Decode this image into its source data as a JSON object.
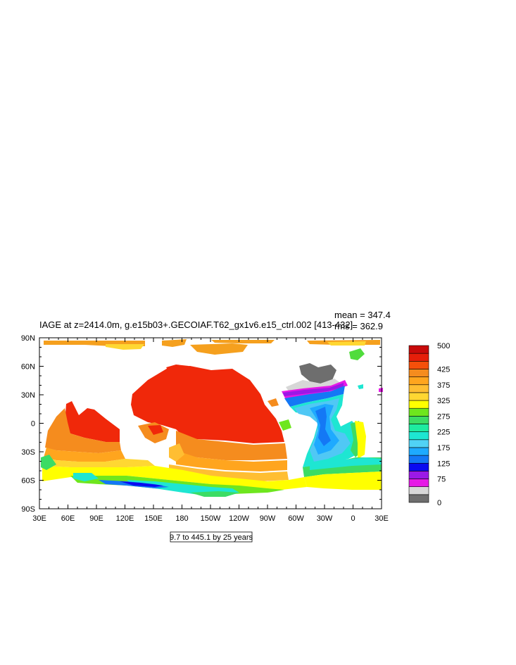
{
  "title": "IAGE at z=2414.0m, g.e15b03+.GECOIAF.T62_gx1v6.e15_ctrl.002 [413-432]",
  "stats": {
    "mean": "mean = 347.4",
    "rms": "rms = 362.9"
  },
  "lat_labels": [
    "90N",
    "60N",
    "30N",
    "0",
    "30S",
    "60S",
    "90S"
  ],
  "lon_labels": [
    "30E",
    "60E",
    "90E",
    "120E",
    "150E",
    "180",
    "150W",
    "120W",
    "90W",
    "60W",
    "30W",
    "0",
    "30E"
  ],
  "contour_info": "9.7 to 445.1 by 25 years",
  "colorbar": {
    "colors": [
      "#6e6e6e",
      "#d7d7d7",
      "#e619e6",
      "#9b19e6",
      "#0a0af0",
      "#1478f5",
      "#1eaaff",
      "#50d2f5",
      "#1ee6d2",
      "#1eeba0",
      "#3cdc64",
      "#6ee61e",
      "#ffff00",
      "#ffd732",
      "#ffbe32",
      "#ffa51e",
      "#f58c1e",
      "#f5500a",
      "#e61e0a",
      "#c80a0a"
    ],
    "labels": [
      {
        "text": "500",
        "level": 500
      },
      {
        "text": "425",
        "level": 425
      },
      {
        "text": "375",
        "level": 375
      },
      {
        "text": "325",
        "level": 325
      },
      {
        "text": "275",
        "level": 275
      },
      {
        "text": "225",
        "level": 225
      },
      {
        "text": "175",
        "level": 175
      },
      {
        "text": "125",
        "level": 125
      },
      {
        "text": "75",
        "level": 75
      },
      {
        "text": "0",
        "level": 0
      }
    ]
  }
}
